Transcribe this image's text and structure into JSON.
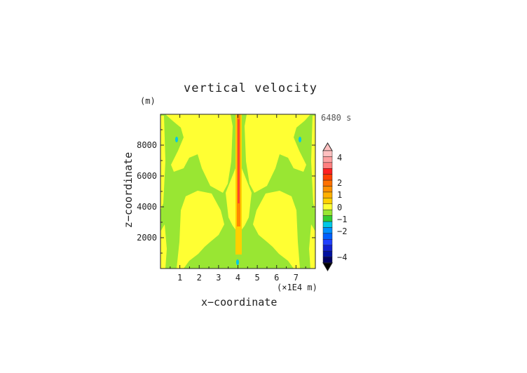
{
  "chart_data": {
    "type": "heatmap",
    "title": "vertical velocity",
    "xlabel": "x−coordinate",
    "ylabel": "z−coordinate",
    "y_unit": "(m)",
    "x_unit": "(×1E4 m)",
    "time_label": "6480 s",
    "xlim": [
      0,
      8
    ],
    "ylim": [
      0,
      10000
    ],
    "x_ticks": [
      "1",
      "2",
      "3",
      "4",
      "5",
      "6",
      "7"
    ],
    "y_ticks": [
      "2000",
      "4000",
      "6000",
      "8000"
    ],
    "colorbar_labels": [
      "4",
      "2",
      "1",
      "0",
      "−1",
      "−2",
      "−4"
    ],
    "colors": {
      "positive_small": "#ffff33",
      "near_zero": "#99e633",
      "negative_small": "#00c8e6",
      "positive_large": "#ff8800",
      "strong_positive": "#ff3333"
    },
    "colorbar_bins": [
      "#ffc0c0",
      "#ffa0a0",
      "#ff8080",
      "#ff2020",
      "#ff4000",
      "#ff7000",
      "#ff9000",
      "#ffb000",
      "#ffd000",
      "#ffff33",
      "#99e633",
      "#33cc33",
      "#00c8e6",
      "#0090ff",
      "#0060ff",
      "#2040ff",
      "#1020d0",
      "#0010a0",
      "#000060"
    ]
  }
}
